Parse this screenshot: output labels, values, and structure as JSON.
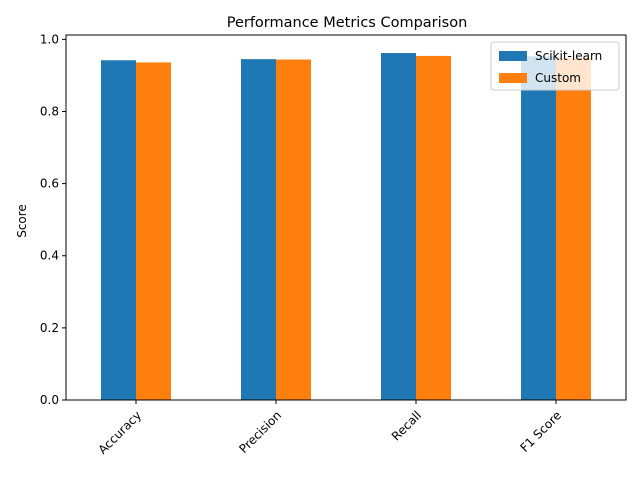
{
  "chart_data": {
    "type": "bar",
    "title": "Performance Metrics Comparison",
    "xlabel": "",
    "ylabel": "Score",
    "categories": [
      "Accuracy",
      "Precision",
      "Recall",
      "F1 Score"
    ],
    "series": [
      {
        "name": "Scikit-learn",
        "color": "#1f77b4",
        "values": [
          0.942,
          0.945,
          0.962,
          0.953
        ]
      },
      {
        "name": "Custom",
        "color": "#ff7f0e",
        "values": [
          0.936,
          0.944,
          0.954,
          0.949
        ]
      }
    ],
    "ylim": [
      0.0,
      1.012
    ],
    "yticks": [
      "0.0",
      "0.2",
      "0.4",
      "0.6",
      "0.8",
      "1.0"
    ],
    "grid": false,
    "legend_position": "top-right",
    "xtick_rotation": 45
  }
}
